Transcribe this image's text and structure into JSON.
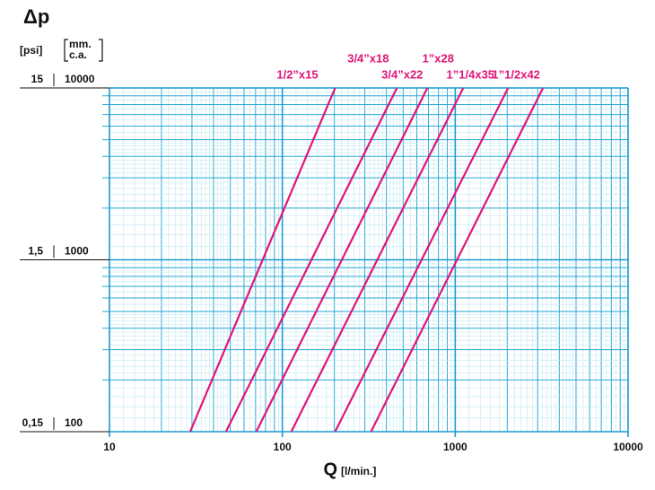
{
  "chart_data": {
    "type": "line",
    "y_label": "Δp",
    "y2_unit": "[psi]",
    "y_unit": [
      "mm.",
      "c.a."
    ],
    "x_label": "Q",
    "x_unit": "[l/min.]",
    "log_x": true,
    "log_y": true,
    "grid": true,
    "xlim": [
      10,
      10000
    ],
    "xticks": [
      10,
      100,
      1000,
      10000
    ],
    "ylim": [
      100,
      10000
    ],
    "yticks": [
      100,
      1000,
      10000
    ],
    "y2lim": [
      0.15,
      15
    ],
    "y2ticks": [
      {
        "value": 0.15,
        "label": "0,15"
      },
      {
        "value": 1.5,
        "label": "1,5"
      },
      {
        "value": 15,
        "label": "15"
      }
    ],
    "series": [
      {
        "name": "1/2”x15",
        "color": "#e0157a",
        "x": [
          29.3,
          202
        ],
        "values": [
          100,
          10000
        ]
      },
      {
        "name": "3/4”x18",
        "color": "#e0157a",
        "x": [
          47.2,
          460
        ],
        "values": [
          100,
          10000
        ]
      },
      {
        "name": "3/4”x22",
        "color": "#e0157a",
        "x": [
          70.7,
          690
        ],
        "values": [
          100,
          10000
        ]
      },
      {
        "name": "1”x28",
        "color": "#e0157a",
        "x": [
          112.7,
          1113
        ],
        "values": [
          100,
          10000
        ]
      },
      {
        "name": "1”1/4x35",
        "color": "#e0157a",
        "x": [
          202,
          2023
        ],
        "values": [
          100,
          10000
        ]
      },
      {
        "name": "1”1/2x42",
        "color": "#e0157a",
        "x": [
          326,
          3220
        ],
        "values": [
          100,
          10000
        ]
      }
    ]
  }
}
